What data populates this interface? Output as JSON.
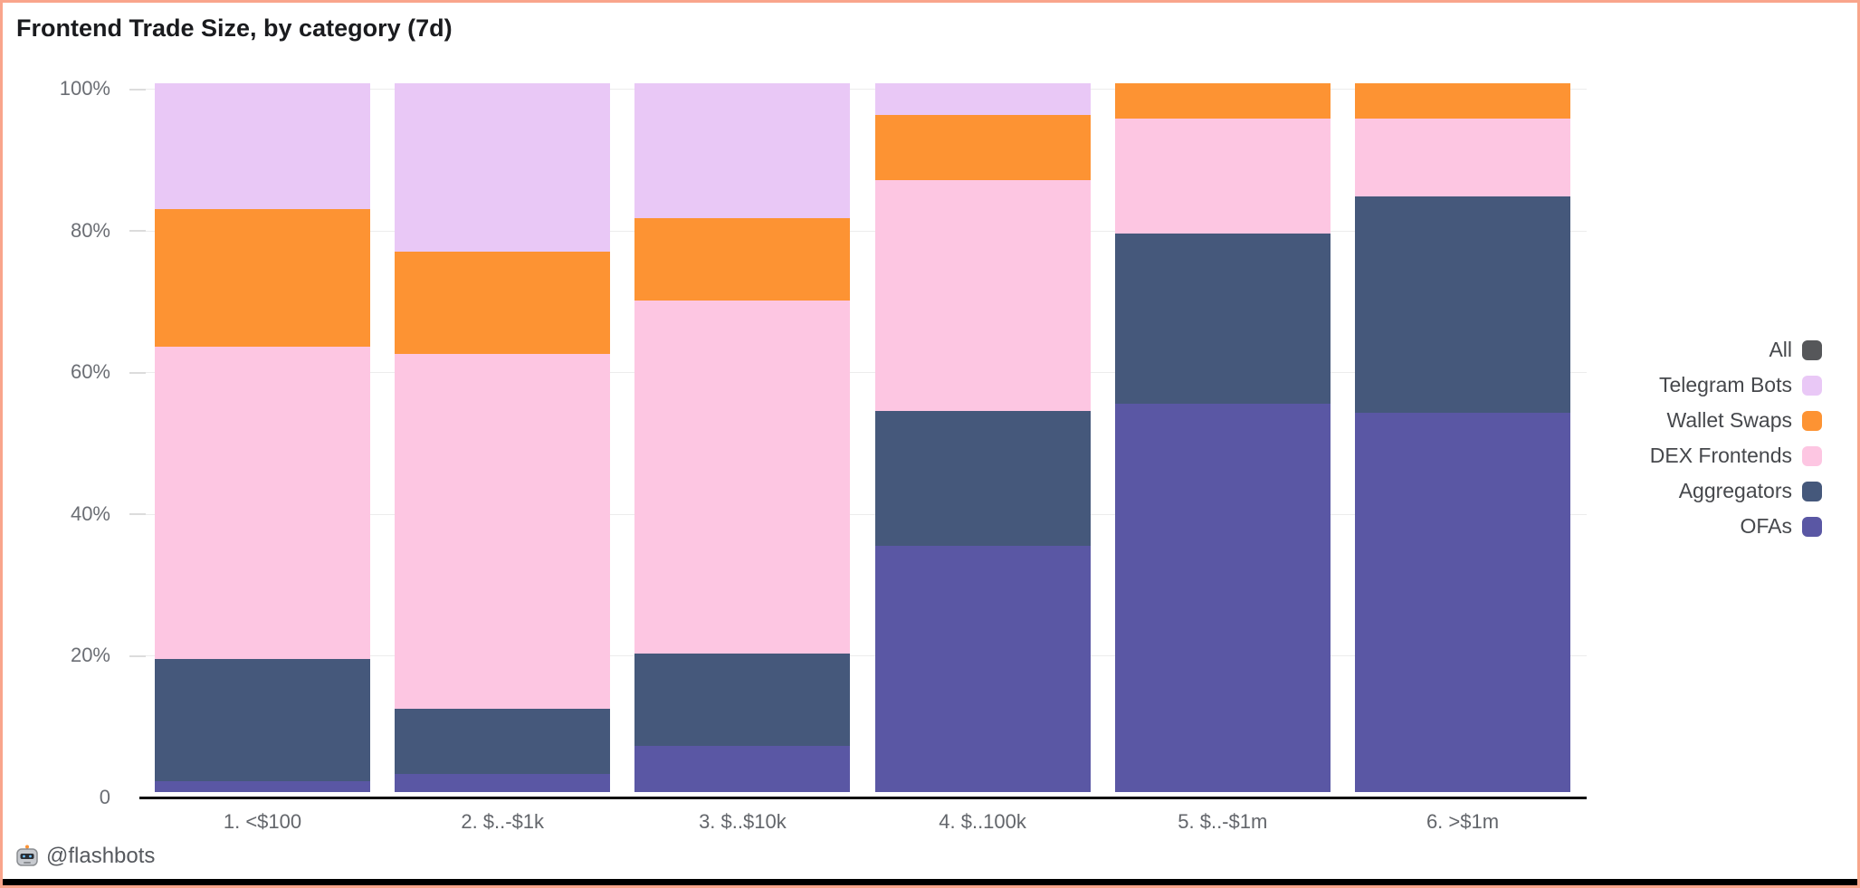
{
  "page": {
    "background": "#ffffff",
    "border_color": "#f9a58c",
    "bottom_bar_color": "#000000"
  },
  "chart_data": {
    "type": "bar",
    "variant": "stacked-percent",
    "title": "Frontend Trade Size, by category (7d)",
    "categories": [
      "1. <$100",
      "2. $..-$1k",
      "3. $..$10k",
      "4. $..100k",
      "5. $..-$1m",
      "6. >$1m"
    ],
    "stack_order": "bottom-to-top",
    "series": [
      {
        "name": "OFAs",
        "color": "#5a57a4",
        "values": [
          1.5,
          2.5,
          6.5,
          34.8,
          54.8,
          53.5
        ]
      },
      {
        "name": "Aggregators",
        "color": "#45587b",
        "values": [
          17.3,
          9.3,
          13.0,
          19.0,
          24.0,
          30.5
        ]
      },
      {
        "name": "DEX Frontends",
        "color": "#fdc6e2",
        "values": [
          44.0,
          50.0,
          49.8,
          32.5,
          16.2,
          11.0
        ]
      },
      {
        "name": "Wallet Swaps",
        "color": "#fd9333",
        "values": [
          19.5,
          14.4,
          11.7,
          9.2,
          5.0,
          5.0
        ]
      },
      {
        "name": "Telegram Bots",
        "color": "#e9c8f6",
        "values": [
          17.7,
          23.8,
          19.0,
          4.5,
          0,
          0
        ]
      }
    ],
    "y_axis": {
      "range": [
        0,
        100
      ],
      "grid": true,
      "ticks": [
        {
          "label": "100%",
          "value": 100
        },
        {
          "label": "80%",
          "value": 80
        },
        {
          "label": "60%",
          "value": 60
        },
        {
          "label": "40%",
          "value": 40
        },
        {
          "label": "20%",
          "value": 20
        },
        {
          "label": "0",
          "value": 0
        }
      ]
    },
    "legend": {
      "position": "right",
      "entries": [
        {
          "label": "All",
          "color": "#56575a"
        },
        {
          "label": "Telegram Bots",
          "color": "#e9c8f6"
        },
        {
          "label": "Wallet Swaps",
          "color": "#fd9333"
        },
        {
          "label": "DEX Frontends",
          "color": "#fdc6e2"
        },
        {
          "label": "Aggregators",
          "color": "#45587b"
        },
        {
          "label": "OFAs",
          "color": "#5a57a4"
        }
      ]
    }
  },
  "footer": {
    "icon": "flashbots-robot",
    "handle": "@flashbots"
  }
}
